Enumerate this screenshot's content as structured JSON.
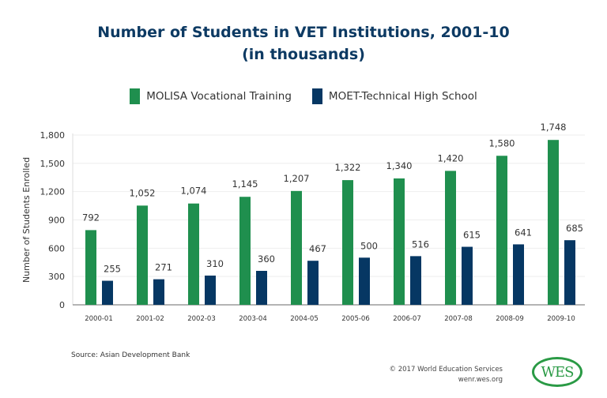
{
  "chart_data": {
    "type": "bar",
    "title": "Number of Students in VET Institutions, 2001-10",
    "subtitle": "(in thousands)",
    "xlabel": "",
    "ylabel": "Number of Students Enrolled",
    "ylim": [
      0,
      1800
    ],
    "yticks": [
      0,
      300,
      600,
      900,
      1200,
      1500,
      1800
    ],
    "ytick_labels": [
      "0",
      "300",
      "600",
      "900",
      "1,200",
      "1,500",
      "1,800"
    ],
    "grid": true,
    "legend_position": "top",
    "categories": [
      "2000-01",
      "2001-02",
      "2002-03",
      "2003-04",
      "2004-05",
      "2005-06",
      "2006-07",
      "2007-08",
      "2008-09",
      "2009-10"
    ],
    "series": [
      {
        "name": "MOLISA Vocational Training",
        "color": "#1f8f4e",
        "values": [
          792,
          1052,
          1074,
          1145,
          1207,
          1322,
          1340,
          1420,
          1580,
          1748
        ],
        "labels": [
          "792",
          "1,052",
          "1,074",
          "1,145",
          "1,207",
          "1,322",
          "1,340",
          "1,420",
          "1,580",
          "1,748"
        ]
      },
      {
        "name": "MOET-Technical High School",
        "color": "#063763",
        "values": [
          255,
          271,
          310,
          360,
          467,
          500,
          516,
          615,
          641,
          685
        ],
        "labels": [
          "255",
          "271",
          "310",
          "360",
          "467",
          "500",
          "516",
          "615",
          "641",
          "685"
        ]
      }
    ]
  },
  "source": "Source: Asian Development Bank",
  "copyright": "© 2017 World Education Services",
  "website": "wenr.wes.org",
  "logo_text": "WES"
}
